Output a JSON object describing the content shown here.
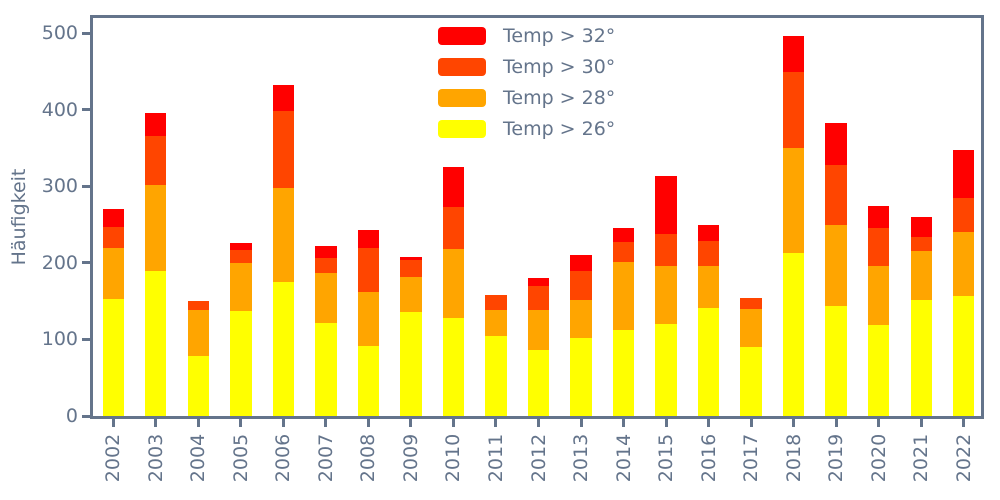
{
  "chart_data": {
    "type": "bar",
    "stacked": true,
    "title": "",
    "xlabel": "",
    "ylabel": "Häufigkeit",
    "categories": [
      "2002",
      "2003",
      "2004",
      "2005",
      "2006",
      "2007",
      "2008",
      "2009",
      "2010",
      "2011",
      "2012",
      "2013",
      "2014",
      "2015",
      "2016",
      "2017",
      "2018",
      "2019",
      "2020",
      "2021",
      "2022"
    ],
    "series": [
      {
        "name": "Temp > 26°",
        "color": "#FFFF00",
        "values": [
          153,
          189,
          79,
          137,
          175,
          122,
          92,
          136,
          128,
          104,
          86,
          102,
          113,
          120,
          141,
          90,
          213,
          144,
          119,
          151,
          157
        ]
      },
      {
        "name": "Temp > 28°",
        "color": "#FFA500",
        "values": [
          66,
          113,
          59,
          63,
          123,
          65,
          70,
          46,
          90,
          35,
          53,
          49,
          88,
          76,
          55,
          50,
          137,
          105,
          77,
          64,
          83
        ]
      },
      {
        "name": "Temp > 30°",
        "color": "#FF4500",
        "values": [
          28,
          64,
          12,
          17,
          101,
          20,
          57,
          22,
          55,
          19,
          31,
          39,
          26,
          42,
          32,
          14,
          100,
          79,
          50,
          19,
          45
        ]
      },
      {
        "name": "Temp > 32°",
        "color": "#FF0000",
        "values": [
          23,
          30,
          0,
          9,
          33,
          15,
          24,
          4,
          52,
          0,
          10,
          21,
          19,
          75,
          22,
          0,
          46,
          55,
          29,
          26,
          63
        ]
      }
    ],
    "stack_order": "bottom-to-top",
    "yticks": [
      0,
      100,
      200,
      300,
      400,
      500
    ],
    "ylim": [
      0,
      520
    ],
    "grid": false,
    "legend_position": "upper center",
    "legend": {
      "items": [
        {
          "label": "Temp > 32°",
          "color": "#FF0000"
        },
        {
          "label": "Temp > 30°",
          "color": "#FF4500"
        },
        {
          "label": "Temp > 28°",
          "color": "#FFA500"
        },
        {
          "label": "Temp > 26°",
          "color": "#FFFF00"
        }
      ]
    },
    "axis_color": "#64748b"
  }
}
